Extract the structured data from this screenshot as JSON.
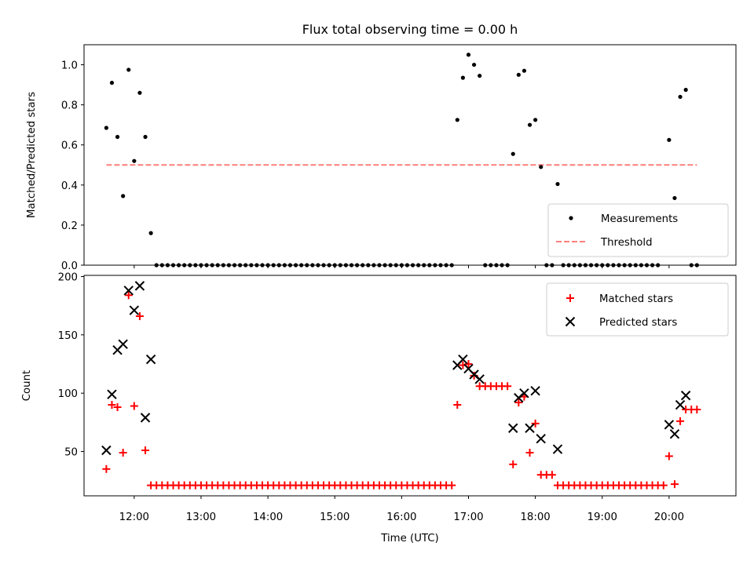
{
  "title": "Flux total observing time = 0.00 h",
  "colors": {
    "threshold": "#ff7f7f",
    "matched": "#ff0000",
    "predicted": "#000000",
    "measurement": "#000000"
  },
  "chart_data": [
    {
      "type": "scatter",
      "ylabel": "Matched/Predicted stars",
      "ylim": [
        0,
        1.1
      ],
      "yticks": [
        "0.0",
        "0.2",
        "0.4",
        "0.6",
        "0.8",
        "1.0"
      ],
      "legend": {
        "placement": "lower-right",
        "entries": [
          "Measurements",
          "Threshold"
        ]
      },
      "threshold": {
        "name": "Threshold",
        "value": 0.5,
        "x_start": "11:35",
        "x_end": "20:25"
      },
      "series": [
        {
          "name": "Measurements",
          "points": [
            [
              "11:35",
              0.685
            ],
            [
              "11:40",
              0.91
            ],
            [
              "11:45",
              0.64
            ],
            [
              "11:50",
              0.345
            ],
            [
              "11:55",
              0.975
            ],
            [
              "12:00",
              0.52
            ],
            [
              "12:05",
              0.86
            ],
            [
              "12:10",
              0.64
            ],
            [
              "12:15",
              0.16
            ],
            [
              "12:20",
              0
            ],
            [
              "12:25",
              0
            ],
            [
              "12:30",
              0
            ],
            [
              "12:35",
              0
            ],
            [
              "12:40",
              0
            ],
            [
              "12:45",
              0
            ],
            [
              "12:50",
              0
            ],
            [
              "12:55",
              0
            ],
            [
              "13:00",
              0
            ],
            [
              "13:05",
              0
            ],
            [
              "13:10",
              0
            ],
            [
              "13:15",
              0
            ],
            [
              "13:20",
              0
            ],
            [
              "13:25",
              0
            ],
            [
              "13:30",
              0
            ],
            [
              "13:35",
              0
            ],
            [
              "13:40",
              0
            ],
            [
              "13:45",
              0
            ],
            [
              "13:50",
              0
            ],
            [
              "13:55",
              0
            ],
            [
              "14:00",
              0
            ],
            [
              "14:05",
              0
            ],
            [
              "14:10",
              0
            ],
            [
              "14:15",
              0
            ],
            [
              "14:20",
              0
            ],
            [
              "14:25",
              0
            ],
            [
              "14:30",
              0
            ],
            [
              "14:35",
              0
            ],
            [
              "14:40",
              0
            ],
            [
              "14:45",
              0
            ],
            [
              "14:50",
              0
            ],
            [
              "14:55",
              0
            ],
            [
              "15:00",
              0
            ],
            [
              "15:05",
              0
            ],
            [
              "15:10",
              0
            ],
            [
              "15:15",
              0
            ],
            [
              "15:20",
              0
            ],
            [
              "15:25",
              0
            ],
            [
              "15:30",
              0
            ],
            [
              "15:35",
              0
            ],
            [
              "15:40",
              0
            ],
            [
              "15:45",
              0
            ],
            [
              "15:50",
              0
            ],
            [
              "15:55",
              0
            ],
            [
              "16:00",
              0
            ],
            [
              "16:05",
              0
            ],
            [
              "16:10",
              0
            ],
            [
              "16:15",
              0
            ],
            [
              "16:20",
              0
            ],
            [
              "16:25",
              0
            ],
            [
              "16:30",
              0
            ],
            [
              "16:35",
              0
            ],
            [
              "16:40",
              0
            ],
            [
              "16:45",
              0
            ],
            [
              "16:50",
              0.725
            ],
            [
              "16:55",
              0.935
            ],
            [
              "17:00",
              1.05
            ],
            [
              "17:05",
              1.0
            ],
            [
              "17:10",
              0.945
            ],
            [
              "17:15",
              0
            ],
            [
              "17:20",
              0
            ],
            [
              "17:25",
              0
            ],
            [
              "17:30",
              0
            ],
            [
              "17:35",
              0
            ],
            [
              "17:40",
              0.555
            ],
            [
              "17:45",
              0.95
            ],
            [
              "17:50",
              0.97
            ],
            [
              "17:55",
              0.7
            ],
            [
              "18:00",
              0.725
            ],
            [
              "18:05",
              0.49
            ],
            [
              "18:10",
              0
            ],
            [
              "18:15",
              0
            ],
            [
              "18:20",
              0.405
            ],
            [
              "18:25",
              0
            ],
            [
              "18:30",
              0
            ],
            [
              "18:35",
              0
            ],
            [
              "18:40",
              0
            ],
            [
              "18:45",
              0
            ],
            [
              "18:50",
              0
            ],
            [
              "18:55",
              0
            ],
            [
              "19:00",
              0
            ],
            [
              "19:05",
              0
            ],
            [
              "19:10",
              0
            ],
            [
              "19:15",
              0
            ],
            [
              "19:20",
              0
            ],
            [
              "19:25",
              0
            ],
            [
              "19:30",
              0
            ],
            [
              "19:35",
              0
            ],
            [
              "19:40",
              0
            ],
            [
              "19:45",
              0
            ],
            [
              "19:50",
              0
            ],
            [
              "20:00",
              0.625
            ],
            [
              "20:05",
              0.335
            ],
            [
              "20:10",
              0.84
            ],
            [
              "20:15",
              0.875
            ],
            [
              "20:20",
              0
            ],
            [
              "20:25",
              0
            ]
          ]
        }
      ]
    },
    {
      "type": "scatter",
      "xlabel": "Time (UTC)",
      "ylabel": "Count",
      "xlim": [
        "11:15",
        "21:00"
      ],
      "ylim": [
        12,
        201
      ],
      "yticks": [
        "50",
        "100",
        "150",
        "200"
      ],
      "xticks": [
        "12:00",
        "13:00",
        "14:00",
        "15:00",
        "16:00",
        "17:00",
        "18:00",
        "19:00",
        "20:00"
      ],
      "legend": {
        "placement": "top-right",
        "entries": [
          "Matched stars",
          "Predicted stars"
        ]
      },
      "series": [
        {
          "name": "Matched stars",
          "points": [
            [
              "11:35",
              35
            ],
            [
              "11:40",
              90
            ],
            [
              "11:45",
              88
            ],
            [
              "11:50",
              49
            ],
            [
              "11:55",
              184
            ],
            [
              "12:00",
              89
            ],
            [
              "12:05",
              166
            ],
            [
              "12:10",
              51
            ],
            [
              "12:15",
              21
            ],
            [
              "12:20",
              21
            ],
            [
              "12:25",
              21
            ],
            [
              "12:30",
              21
            ],
            [
              "12:35",
              21
            ],
            [
              "12:40",
              21
            ],
            [
              "12:45",
              21
            ],
            [
              "12:50",
              21
            ],
            [
              "12:55",
              21
            ],
            [
              "13:00",
              21
            ],
            [
              "13:05",
              21
            ],
            [
              "13:10",
              21
            ],
            [
              "13:15",
              21
            ],
            [
              "13:20",
              21
            ],
            [
              "13:25",
              21
            ],
            [
              "13:30",
              21
            ],
            [
              "13:35",
              21
            ],
            [
              "13:40",
              21
            ],
            [
              "13:45",
              21
            ],
            [
              "13:50",
              21
            ],
            [
              "13:55",
              21
            ],
            [
              "14:00",
              21
            ],
            [
              "14:05",
              21
            ],
            [
              "14:10",
              21
            ],
            [
              "14:15",
              21
            ],
            [
              "14:20",
              21
            ],
            [
              "14:25",
              21
            ],
            [
              "14:30",
              21
            ],
            [
              "14:35",
              21
            ],
            [
              "14:40",
              21
            ],
            [
              "14:45",
              21
            ],
            [
              "14:50",
              21
            ],
            [
              "14:55",
              21
            ],
            [
              "15:00",
              21
            ],
            [
              "15:05",
              21
            ],
            [
              "15:10",
              21
            ],
            [
              "15:15",
              21
            ],
            [
              "15:20",
              21
            ],
            [
              "15:25",
              21
            ],
            [
              "15:30",
              21
            ],
            [
              "15:35",
              21
            ],
            [
              "15:40",
              21
            ],
            [
              "15:45",
              21
            ],
            [
              "15:50",
              21
            ],
            [
              "15:55",
              21
            ],
            [
              "16:00",
              21
            ],
            [
              "16:05",
              21
            ],
            [
              "16:10",
              21
            ],
            [
              "16:15",
              21
            ],
            [
              "16:20",
              21
            ],
            [
              "16:25",
              21
            ],
            [
              "16:30",
              21
            ],
            [
              "16:35",
              21
            ],
            [
              "16:40",
              21
            ],
            [
              "16:45",
              21
            ],
            [
              "16:50",
              90
            ],
            [
              "16:55",
              124
            ],
            [
              "17:00",
              125
            ],
            [
              "17:05",
              115
            ],
            [
              "17:10",
              106
            ],
            [
              "17:15",
              106
            ],
            [
              "17:20",
              106
            ],
            [
              "17:25",
              106
            ],
            [
              "17:30",
              106
            ],
            [
              "17:35",
              106
            ],
            [
              "17:40",
              39
            ],
            [
              "17:45",
              92
            ],
            [
              "17:50",
              97
            ],
            [
              "17:55",
              49
            ],
            [
              "18:00",
              74
            ],
            [
              "18:05",
              30
            ],
            [
              "18:10",
              30
            ],
            [
              "18:15",
              30
            ],
            [
              "18:20",
              21
            ],
            [
              "18:25",
              21
            ],
            [
              "18:30",
              21
            ],
            [
              "18:35",
              21
            ],
            [
              "18:40",
              21
            ],
            [
              "18:45",
              21
            ],
            [
              "18:50",
              21
            ],
            [
              "18:55",
              21
            ],
            [
              "19:00",
              21
            ],
            [
              "19:05",
              21
            ],
            [
              "19:10",
              21
            ],
            [
              "19:15",
              21
            ],
            [
              "19:20",
              21
            ],
            [
              "19:25",
              21
            ],
            [
              "19:30",
              21
            ],
            [
              "19:35",
              21
            ],
            [
              "19:40",
              21
            ],
            [
              "19:45",
              21
            ],
            [
              "19:50",
              21
            ],
            [
              "19:55",
              21
            ],
            [
              "20:00",
              46
            ],
            [
              "20:05",
              22
            ],
            [
              "20:10",
              76
            ],
            [
              "20:15",
              86
            ],
            [
              "20:20",
              86
            ],
            [
              "20:25",
              86
            ]
          ]
        },
        {
          "name": "Predicted stars",
          "points": [
            [
              "11:35",
              51
            ],
            [
              "11:40",
              99
            ],
            [
              "11:45",
              137
            ],
            [
              "11:50",
              142
            ],
            [
              "11:55",
              188
            ],
            [
              "12:00",
              171
            ],
            [
              "12:05",
              192
            ],
            [
              "12:10",
              79
            ],
            [
              "12:15",
              129
            ],
            [
              "16:50",
              124
            ],
            [
              "16:55",
              129
            ],
            [
              "17:00",
              121
            ],
            [
              "17:05",
              116
            ],
            [
              "17:10",
              112
            ],
            [
              "17:40",
              70
            ],
            [
              "17:45",
              96
            ],
            [
              "17:50",
              100
            ],
            [
              "17:55",
              70
            ],
            [
              "18:00",
              102
            ],
            [
              "18:05",
              61
            ],
            [
              "18:20",
              52
            ],
            [
              "20:00",
              73
            ],
            [
              "20:05",
              65
            ],
            [
              "20:10",
              90
            ],
            [
              "20:15",
              98
            ]
          ]
        }
      ]
    }
  ]
}
